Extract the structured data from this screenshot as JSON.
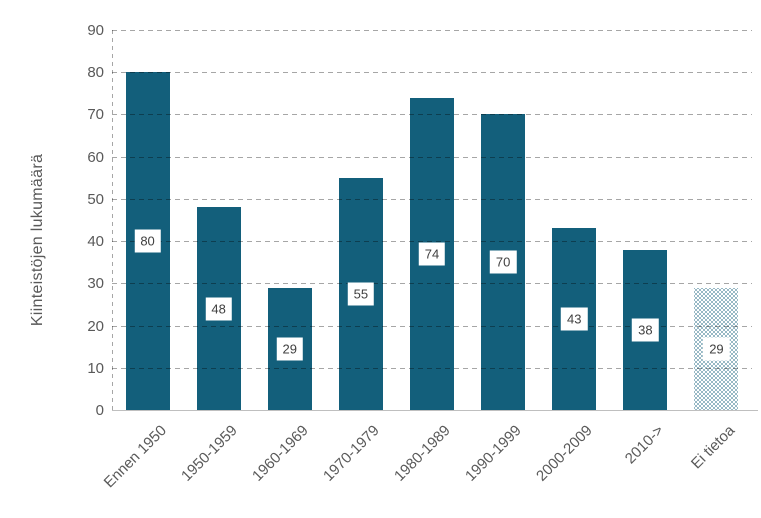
{
  "chart_data": {
    "type": "bar",
    "title": "",
    "xlabel": "",
    "ylabel": "Kiinteistöjen lukumäärä",
    "ylim": [
      0,
      90
    ],
    "yticks": [
      0,
      10,
      20,
      30,
      40,
      50,
      60,
      70,
      80,
      90
    ],
    "grid": "horizontal-dashed",
    "legend": "none",
    "categories": [
      "Ennen 1950",
      "1950-1959",
      "1960-1969",
      "1970-1979",
      "1980-1989",
      "1990-1999",
      "2000-2009",
      "2010->",
      "Ei tietoa"
    ],
    "values": [
      80,
      48,
      29,
      55,
      74,
      70,
      43,
      38,
      29
    ],
    "value_labels": [
      "80",
      "48",
      "29",
      "55",
      "74",
      "70",
      "43",
      "38",
      "29"
    ],
    "bar_fill_styles": [
      "solid",
      "solid",
      "solid",
      "solid",
      "solid",
      "solid",
      "solid",
      "solid",
      "dotted"
    ]
  },
  "colors": {
    "bar_fill": "#135F7B",
    "dotted_bar_dot": "#135F7B",
    "gridline": "#A6A6A6",
    "baseline": "#BFBFBF",
    "axis_text": "#595959",
    "value_label_text": "#404040",
    "value_label_bg": "#FFFFFF",
    "background": "#FFFFFF"
  }
}
